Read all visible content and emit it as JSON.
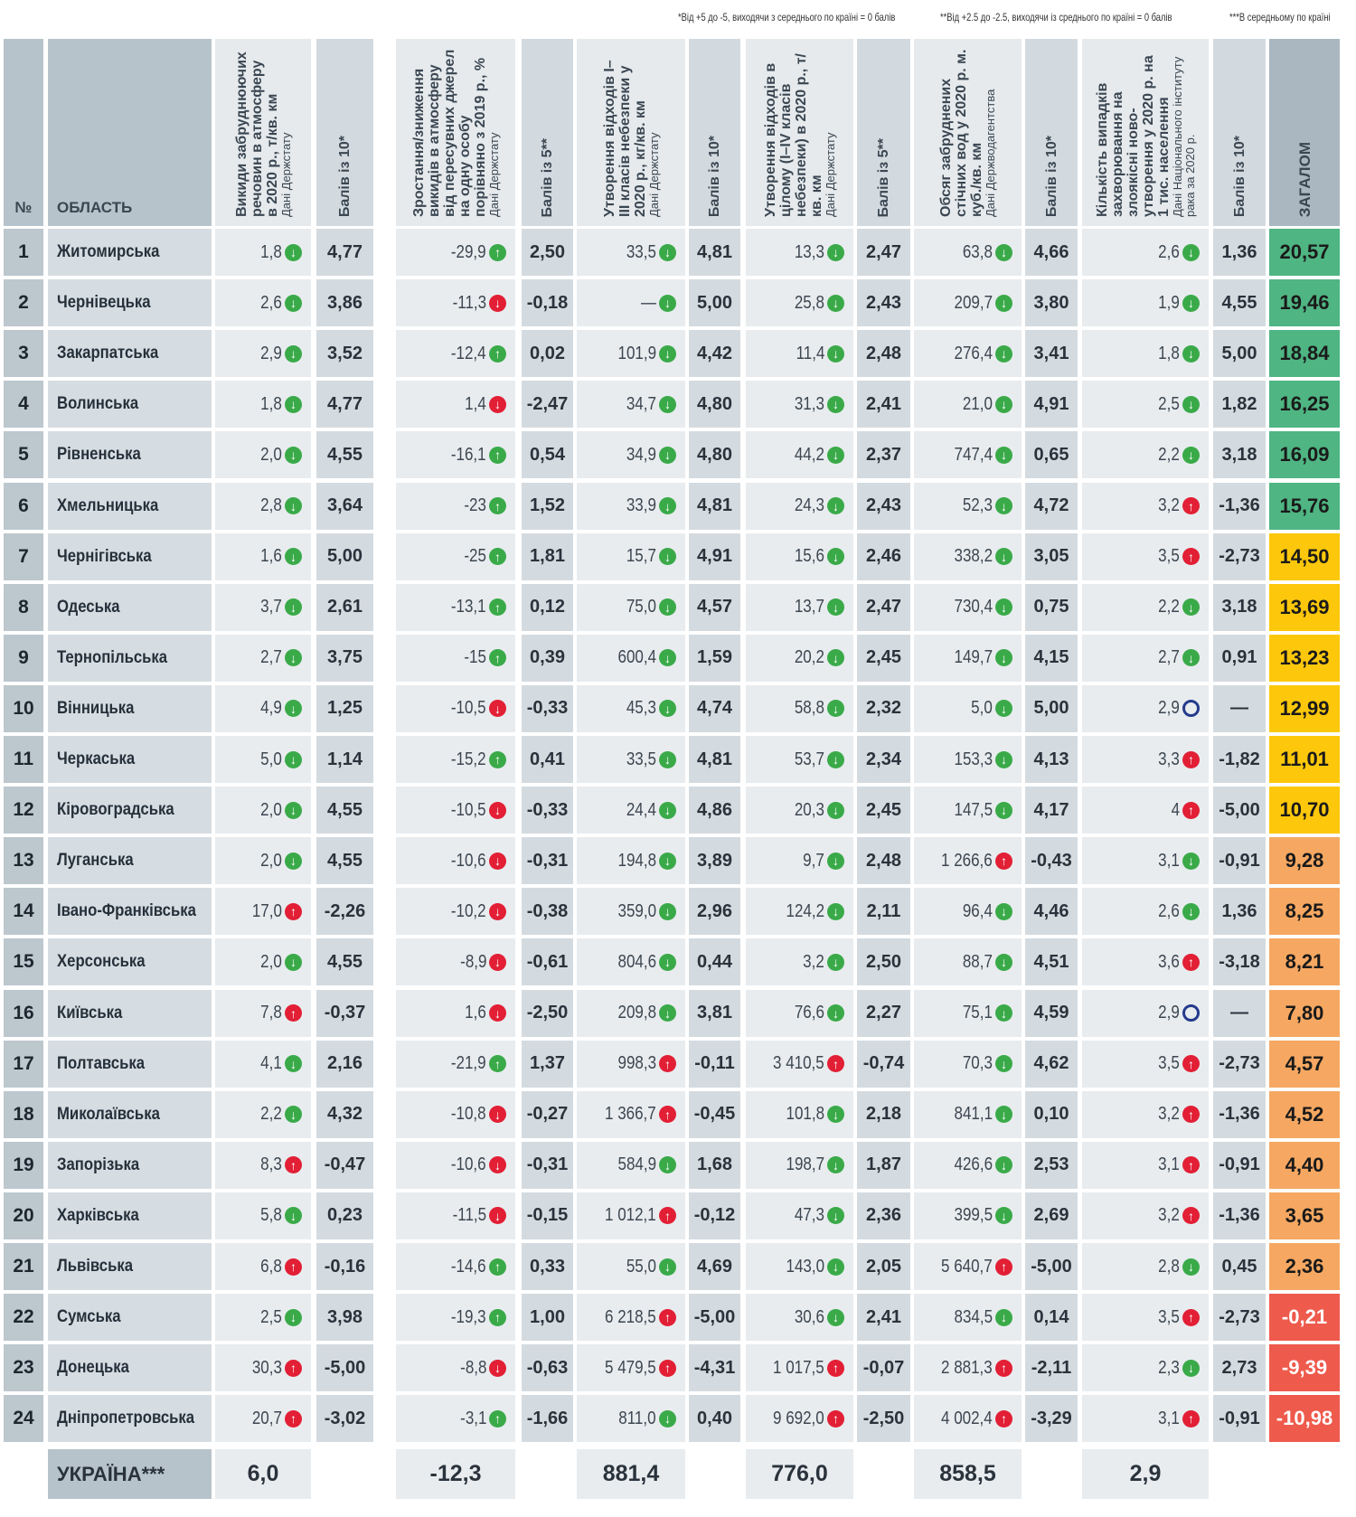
{
  "footnotes": [
    "*Від +5 до -5, виходячи з середнього по країні = 0 балів",
    "**Від +2.5 до -2.5, виходячи із среднього по країні = 0 балів",
    "***В середньому по країні"
  ],
  "headers": {
    "num": "№",
    "region": "ОБЛАСТЬ",
    "c1": {
      "title": "Викиди забруднюючих речовин в атмосферу в 2020 р., т/кв. км",
      "source": "Дані Держстату"
    },
    "s1": "Балів із 10*",
    "c2": {
      "title": "Зростання/зниження викидів в атмосферу від пересувних джерел на одну особу порівняно з 2019 р., %",
      "source": "Дані Держстату"
    },
    "s2": "Балів із 5**",
    "c3": {
      "title": "Утворення відходів I–III класів небезпеки у 2020 р., кг/кв. км",
      "source": "Дані Держстату"
    },
    "s3": "Балів із 10*",
    "c4": {
      "title": "Утворення відходів в цілому (I–IV класів небезпеки) в 2020 р., т/кв. км",
      "source": "Дані Держстату"
    },
    "s4": "Балів із 5**",
    "c5": {
      "title": "Обсяг забруднених стічних вод у 2020 р. м. куб./кв. км",
      "source": "Дані Держводагентства"
    },
    "s5": "Балів із 10*",
    "c6": {
      "title": "Кількість випадків захворювання на злоякісні ново-утворення у 2020 р. на 1 тис. населення",
      "source": "Дані Національного інституту рака за 2020 р."
    },
    "s6": "Балів із 10*",
    "total": "ЗАГАЛОМ"
  },
  "colors": {
    "icon_good": "#3aaa49",
    "icon_bad": "#e21f35",
    "icon_neutral": "#253a8c",
    "tier_green": "#4fb583",
    "tier_yellow": "#fdc80b",
    "tier_orange": "#f6a862",
    "tier_red": "#ee5a4c"
  },
  "icon_legend": {
    "gd": "green-down-arrow",
    "gu": "green-up-arrow",
    "rd": "red-down-arrow",
    "ru": "red-up-arrow",
    "o": "blue-ring-neutral"
  },
  "rows": [
    {
      "n": "1",
      "name": "Житомирська",
      "c": [
        [
          "1,8",
          "gd"
        ],
        "4,77",
        [
          "-29,9",
          "gu"
        ],
        "2,50",
        [
          "33,5",
          "gd"
        ],
        "4,81",
        [
          "13,3",
          "gd"
        ],
        "2,47",
        [
          "63,8",
          "gd"
        ],
        "4,66",
        [
          "2,6",
          "gd"
        ],
        "1,36"
      ],
      "total": "20,57",
      "tier": "green"
    },
    {
      "n": "2",
      "name": "Чернівецька",
      "c": [
        [
          "2,6",
          "gd"
        ],
        "3,86",
        [
          "-11,3",
          "rd"
        ],
        "-0,18",
        [
          "—",
          "gd"
        ],
        "5,00",
        [
          "25,8",
          "gd"
        ],
        "2,43",
        [
          "209,7",
          "gd"
        ],
        "3,80",
        [
          "1,9",
          "gd"
        ],
        "4,55"
      ],
      "total": "19,46",
      "tier": "green"
    },
    {
      "n": "3",
      "name": "Закарпатська",
      "c": [
        [
          "2,9",
          "gd"
        ],
        "3,52",
        [
          "-12,4",
          "gu"
        ],
        "0,02",
        [
          "101,9",
          "gd"
        ],
        "4,42",
        [
          "11,4",
          "gd"
        ],
        "2,48",
        [
          "276,4",
          "gd"
        ],
        "3,41",
        [
          "1,8",
          "gd"
        ],
        "5,00"
      ],
      "total": "18,84",
      "tier": "green"
    },
    {
      "n": "4",
      "name": "Волинська",
      "c": [
        [
          "1,8",
          "gd"
        ],
        "4,77",
        [
          "1,4",
          "rd"
        ],
        "-2,47",
        [
          "34,7",
          "gd"
        ],
        "4,80",
        [
          "31,3",
          "gd"
        ],
        "2,41",
        [
          "21,0",
          "gd"
        ],
        "4,91",
        [
          "2,5",
          "gd"
        ],
        "1,82"
      ],
      "total": "16,25",
      "tier": "green"
    },
    {
      "n": "5",
      "name": "Рівненська",
      "c": [
        [
          "2,0",
          "gd"
        ],
        "4,55",
        [
          "-16,1",
          "gu"
        ],
        "0,54",
        [
          "34,9",
          "gd"
        ],
        "4,80",
        [
          "44,2",
          "gd"
        ],
        "2,37",
        [
          "747,4",
          "gd"
        ],
        "0,65",
        [
          "2,2",
          "gd"
        ],
        "3,18"
      ],
      "total": "16,09",
      "tier": "green"
    },
    {
      "n": "6",
      "name": "Хмельницька",
      "c": [
        [
          "2,8",
          "gd"
        ],
        "3,64",
        [
          "-23",
          "gu"
        ],
        "1,52",
        [
          "33,9",
          "gd"
        ],
        "4,81",
        [
          "24,3",
          "gd"
        ],
        "2,43",
        [
          "52,3",
          "gd"
        ],
        "4,72",
        [
          "3,2",
          "ru"
        ],
        "-1,36"
      ],
      "total": "15,76",
      "tier": "green"
    },
    {
      "n": "7",
      "name": "Чернігівська",
      "c": [
        [
          "1,6",
          "gd"
        ],
        "5,00",
        [
          "-25",
          "gu"
        ],
        "1,81",
        [
          "15,7",
          "gd"
        ],
        "4,91",
        [
          "15,6",
          "gd"
        ],
        "2,46",
        [
          "338,2",
          "gd"
        ],
        "3,05",
        [
          "3,5",
          "ru"
        ],
        "-2,73"
      ],
      "total": "14,50",
      "tier": "yellow"
    },
    {
      "n": "8",
      "name": "Одеська",
      "c": [
        [
          "3,7",
          "gd"
        ],
        "2,61",
        [
          "-13,1",
          "gu"
        ],
        "0,12",
        [
          "75,0",
          "gd"
        ],
        "4,57",
        [
          "13,7",
          "gd"
        ],
        "2,47",
        [
          "730,4",
          "gd"
        ],
        "0,75",
        [
          "2,2",
          "gd"
        ],
        "3,18"
      ],
      "total": "13,69",
      "tier": "yellow"
    },
    {
      "n": "9",
      "name": "Тернопільська",
      "c": [
        [
          "2,7",
          "gd"
        ],
        "3,75",
        [
          "-15",
          "gu"
        ],
        "0,39",
        [
          "600,4",
          "gd"
        ],
        "1,59",
        [
          "20,2",
          "gd"
        ],
        "2,45",
        [
          "149,7",
          "gd"
        ],
        "4,15",
        [
          "2,7",
          "gd"
        ],
        "0,91"
      ],
      "total": "13,23",
      "tier": "yellow"
    },
    {
      "n": "10",
      "name": "Вінницька",
      "c": [
        [
          "4,9",
          "gd"
        ],
        "1,25",
        [
          "-10,5",
          "rd"
        ],
        "-0,33",
        [
          "45,3",
          "gd"
        ],
        "4,74",
        [
          "58,8",
          "gd"
        ],
        "2,32",
        [
          "5,0",
          "gd"
        ],
        "5,00",
        [
          "2,9",
          "o"
        ],
        "—"
      ],
      "total": "12,99",
      "tier": "yellow"
    },
    {
      "n": "11",
      "name": "Черкаська",
      "c": [
        [
          "5,0",
          "gd"
        ],
        "1,14",
        [
          "-15,2",
          "gu"
        ],
        "0,41",
        [
          "33,5",
          "gd"
        ],
        "4,81",
        [
          "53,7",
          "gd"
        ],
        "2,34",
        [
          "153,3",
          "gd"
        ],
        "4,13",
        [
          "3,3",
          "ru"
        ],
        "-1,82"
      ],
      "total": "11,01",
      "tier": "yellow"
    },
    {
      "n": "12",
      "name": "Кіровоградська",
      "c": [
        [
          "2,0",
          "gd"
        ],
        "4,55",
        [
          "-10,5",
          "rd"
        ],
        "-0,33",
        [
          "24,4",
          "gd"
        ],
        "4,86",
        [
          "20,3",
          "gd"
        ],
        "2,45",
        [
          "147,5",
          "gd"
        ],
        "4,17",
        [
          "4",
          "ru"
        ],
        "-5,00"
      ],
      "total": "10,70",
      "tier": "yellow"
    },
    {
      "n": "13",
      "name": "Луганська",
      "c": [
        [
          "2,0",
          "gd"
        ],
        "4,55",
        [
          "-10,6",
          "rd"
        ],
        "-0,31",
        [
          "194,8",
          "gd"
        ],
        "3,89",
        [
          "9,7",
          "gd"
        ],
        "2,48",
        [
          "1 266,6",
          "ru"
        ],
        "-0,43",
        [
          "3,1",
          "gd"
        ],
        "-0,91"
      ],
      "total": "9,28",
      "tier": "orange"
    },
    {
      "n": "14",
      "name": "Івано-Франківська",
      "c": [
        [
          "17,0",
          "ru"
        ],
        "-2,26",
        [
          "-10,2",
          "rd"
        ],
        "-0,38",
        [
          "359,0",
          "gd"
        ],
        "2,96",
        [
          "124,2",
          "gd"
        ],
        "2,11",
        [
          "96,4",
          "gd"
        ],
        "4,46",
        [
          "2,6",
          "gd"
        ],
        "1,36"
      ],
      "total": "8,25",
      "tier": "orange"
    },
    {
      "n": "15",
      "name": "Херсонська",
      "c": [
        [
          "2,0",
          "gd"
        ],
        "4,55",
        [
          "-8,9",
          "rd"
        ],
        "-0,61",
        [
          "804,6",
          "gd"
        ],
        "0,44",
        [
          "3,2",
          "gd"
        ],
        "2,50",
        [
          "88,7",
          "gd"
        ],
        "4,51",
        [
          "3,6",
          "ru"
        ],
        "-3,18"
      ],
      "total": "8,21",
      "tier": "orange"
    },
    {
      "n": "16",
      "name": "Київська",
      "c": [
        [
          "7,8",
          "ru"
        ],
        "-0,37",
        [
          "1,6",
          "rd"
        ],
        "-2,50",
        [
          "209,8",
          "gd"
        ],
        "3,81",
        [
          "76,6",
          "gd"
        ],
        "2,27",
        [
          "75,1",
          "gd"
        ],
        "4,59",
        [
          "2,9",
          "o"
        ],
        "—"
      ],
      "total": "7,80",
      "tier": "orange"
    },
    {
      "n": "17",
      "name": "Полтавська",
      "c": [
        [
          "4,1",
          "gd"
        ],
        "2,16",
        [
          "-21,9",
          "gu"
        ],
        "1,37",
        [
          "998,3",
          "ru"
        ],
        "-0,11",
        [
          "3 410,5",
          "ru"
        ],
        "-0,74",
        [
          "70,3",
          "gd"
        ],
        "4,62",
        [
          "3,5",
          "ru"
        ],
        "-2,73"
      ],
      "total": "4,57",
      "tier": "orange"
    },
    {
      "n": "18",
      "name": "Миколаївська",
      "c": [
        [
          "2,2",
          "gd"
        ],
        "4,32",
        [
          "-10,8",
          "rd"
        ],
        "-0,27",
        [
          "1 366,7",
          "ru"
        ],
        "-0,45",
        [
          "101,8",
          "gd"
        ],
        "2,18",
        [
          "841,1",
          "gd"
        ],
        "0,10",
        [
          "3,2",
          "ru"
        ],
        "-1,36"
      ],
      "total": "4,52",
      "tier": "orange"
    },
    {
      "n": "19",
      "name": "Запорізька",
      "c": [
        [
          "8,3",
          "ru"
        ],
        "-0,47",
        [
          "-10,6",
          "rd"
        ],
        "-0,31",
        [
          "584,9",
          "gd"
        ],
        "1,68",
        [
          "198,7",
          "gd"
        ],
        "1,87",
        [
          "426,6",
          "gd"
        ],
        "2,53",
        [
          "3,1",
          "ru"
        ],
        "-0,91"
      ],
      "total": "4,40",
      "tier": "orange"
    },
    {
      "n": "20",
      "name": "Харківська",
      "c": [
        [
          "5,8",
          "gd"
        ],
        "0,23",
        [
          "-11,5",
          "rd"
        ],
        "-0,15",
        [
          "1 012,1",
          "ru"
        ],
        "-0,12",
        [
          "47,3",
          "gd"
        ],
        "2,36",
        [
          "399,5",
          "gd"
        ],
        "2,69",
        [
          "3,2",
          "ru"
        ],
        "-1,36"
      ],
      "total": "3,65",
      "tier": "orange"
    },
    {
      "n": "21",
      "name": "Львівська",
      "c": [
        [
          "6,8",
          "ru"
        ],
        "-0,16",
        [
          "-14,6",
          "gu"
        ],
        "0,33",
        [
          "55,0",
          "gd"
        ],
        "4,69",
        [
          "143,0",
          "gd"
        ],
        "2,05",
        [
          "5 640,7",
          "ru"
        ],
        "-5,00",
        [
          "2,8",
          "gd"
        ],
        "0,45"
      ],
      "total": "2,36",
      "tier": "orange"
    },
    {
      "n": "22",
      "name": "Сумська",
      "c": [
        [
          "2,5",
          "gd"
        ],
        "3,98",
        [
          "-19,3",
          "gu"
        ],
        "1,00",
        [
          "6 218,5",
          "ru"
        ],
        "-5,00",
        [
          "30,6",
          "gd"
        ],
        "2,41",
        [
          "834,5",
          "gd"
        ],
        "0,14",
        [
          "3,5",
          "ru"
        ],
        "-2,73"
      ],
      "total": "-0,21",
      "tier": "red"
    },
    {
      "n": "23",
      "name": "Донецька",
      "c": [
        [
          "30,3",
          "ru"
        ],
        "-5,00",
        [
          "-8,8",
          "rd"
        ],
        "-0,63",
        [
          "5 479,5",
          "ru"
        ],
        "-4,31",
        [
          "1 017,5",
          "ru"
        ],
        "-0,07",
        [
          "2 881,3",
          "ru"
        ],
        "-2,11",
        [
          "2,3",
          "gd"
        ],
        "2,73"
      ],
      "total": "-9,39",
      "tier": "red"
    },
    {
      "n": "24",
      "name": "Дніпропетровська",
      "c": [
        [
          "20,7",
          "ru"
        ],
        "-3,02",
        [
          "-3,1",
          "gu"
        ],
        "-1,66",
        [
          "811,0",
          "gd"
        ],
        "0,40",
        [
          "9 692,0",
          "ru"
        ],
        "-2,50",
        [
          "4 002,4",
          "ru"
        ],
        "-3,29",
        [
          "3,1",
          "ru"
        ],
        "-0,91"
      ],
      "total": "-10,98",
      "tier": "red"
    }
  ],
  "footer": {
    "label": "УКРАЇНА***",
    "c1": "6,0",
    "c2": "-12,3",
    "c3": "881,4",
    "c4": "776,0",
    "c5": "858,5",
    "c6": "2,9"
  }
}
